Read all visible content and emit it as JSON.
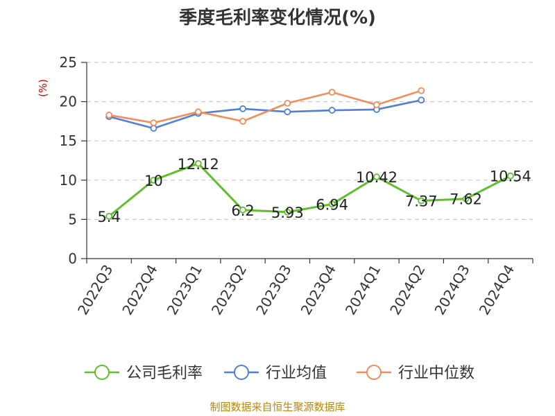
{
  "title": "季度毛利率变化情况(%)",
  "source": "制图数据来自恒生聚源数据库",
  "colors": {
    "unit": "#cc0000",
    "source": "#b8860b",
    "grid": "#c8c8c8",
    "axis": "#333333"
  },
  "chart_data": {
    "type": "line",
    "title": "季度毛利率变化情况(%)",
    "ylabel": "(%)",
    "ylim": [
      0,
      25
    ],
    "yticks": [
      0,
      5,
      10,
      15,
      20,
      25
    ],
    "grid": true,
    "legend_position": "bottom",
    "categories": [
      "2022Q3",
      "2022Q4",
      "2023Q1",
      "2023Q2",
      "2023Q3",
      "2023Q4",
      "2024Q1",
      "2024Q2",
      "2024Q3",
      "2024Q4"
    ],
    "series": [
      {
        "name": "公司毛利率",
        "color": "#5fbe2b",
        "labels": true,
        "values": [
          5.4,
          10,
          12.12,
          6.2,
          5.93,
          6.94,
          10.42,
          7.37,
          7.62,
          10.54
        ],
        "value_labels": [
          "5.4",
          "10",
          "12.12",
          "6.2",
          "5.93",
          "6.94",
          "10.42",
          "7.37",
          "7.62",
          "10.54"
        ]
      },
      {
        "name": "行业均值",
        "color": "#4f7fd6",
        "labels": false,
        "values": [
          18.1,
          16.6,
          18.5,
          19.1,
          18.7,
          18.9,
          19.0,
          20.2,
          null,
          null
        ]
      },
      {
        "name": "行业中位数",
        "color": "#f28c5a",
        "labels": false,
        "values": [
          18.3,
          17.3,
          18.7,
          17.5,
          19.8,
          21.2,
          19.6,
          21.4,
          null,
          null
        ]
      }
    ]
  }
}
